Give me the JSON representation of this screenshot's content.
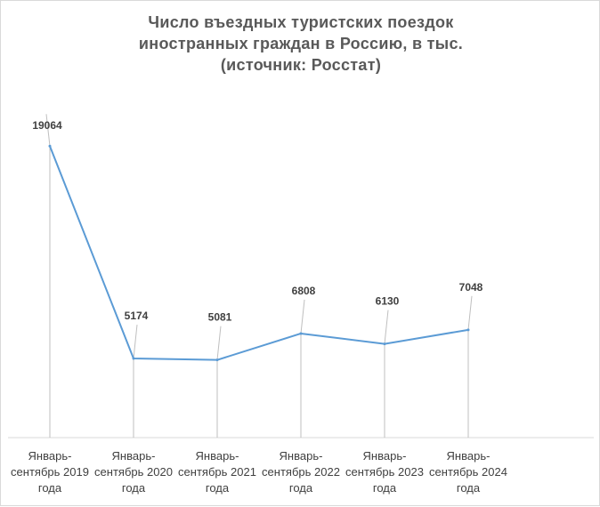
{
  "chart_data": {
    "type": "line",
    "title_lines": [
      "Число въездных туристских поездок",
      "иностранных граждан в Россию, в тыс.",
      "(источник: Росстат)"
    ],
    "categories": [
      [
        "Январь-",
        "сентябрь 2019",
        "года"
      ],
      [
        "Январь-",
        "сентябрь 2020",
        "года"
      ],
      [
        "Январь-",
        "сентябрь 2021",
        "года"
      ],
      [
        "Январь-",
        "сентябрь 2022",
        "года"
      ],
      [
        "Январь-",
        "сентябрь 2023",
        "года"
      ],
      [
        "Январь-",
        "сентябрь 2024",
        "года"
      ]
    ],
    "values": [
      19064,
      5174,
      5081,
      6808,
      6130,
      7048
    ],
    "data_labels": [
      "19064",
      "5174",
      "5081",
      "6808",
      "6130",
      "7048"
    ],
    "ylim": [
      0,
      21000
    ],
    "y_axis_visible": false,
    "grid": false,
    "legend": "none",
    "series_color": "#5b9bd5",
    "leader_line_color": "#bfbfbf"
  }
}
